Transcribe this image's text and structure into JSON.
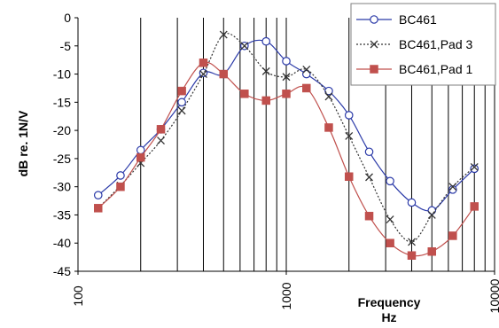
{
  "chart_data": {
    "type": "line",
    "title": "",
    "xlabel": [
      "Frequency",
      "Hz"
    ],
    "ylabel": "dB re. 1N/V",
    "x_scale": "log",
    "xlim": [
      100,
      10000
    ],
    "ylim": [
      -45,
      0
    ],
    "x_ticks": [
      100,
      1000,
      10000
    ],
    "x_tick_labels": [
      "100",
      "1000",
      "10000"
    ],
    "y_ticks": [
      0,
      -5,
      -10,
      -15,
      -20,
      -25,
      -30,
      -35,
      -40,
      -45
    ],
    "y_tick_labels": [
      "0",
      "-5",
      "-10",
      "-15",
      "-20",
      "-25",
      "-30",
      "-35",
      "-40",
      "-45"
    ],
    "x_grid": true,
    "x_grid_minor": true,
    "y_grid": false,
    "legend_position": "top-right",
    "x": [
      125,
      160,
      200,
      250,
      315,
      400,
      500,
      630,
      800,
      1000,
      1250,
      1600,
      2000,
      2500,
      3150,
      4000,
      5000,
      6300,
      8000
    ],
    "series": [
      {
        "name": "BC461",
        "color": "#2b3aa8",
        "marker": "circle",
        "line": "solid",
        "values": [
          -31.5,
          -28,
          -23.5,
          -19.8,
          -15,
          -9.8,
          -10,
          -5,
          -4.2,
          -7.7,
          -10,
          -13,
          -17.3,
          -23.8,
          -29,
          -32.8,
          -34.2,
          -30.5,
          -26.8
        ]
      },
      {
        "name": "BC461,Pad 3",
        "color": "#333333",
        "marker": "x",
        "line": "dotted",
        "values": [
          -33.8,
          -29.8,
          -25.8,
          -21.8,
          -16.5,
          -10,
          -3,
          -5,
          -9.5,
          -10.5,
          -9.2,
          -14,
          -21,
          -28.3,
          -35.8,
          -39.8,
          -35,
          -30,
          -26.5
        ]
      },
      {
        "name": "BC461,Pad 1",
        "color": "#c0504d",
        "marker": "square",
        "line": "solid",
        "values": [
          -33.8,
          -30,
          -24.8,
          -19.8,
          -13,
          -8,
          -10,
          -13.5,
          -14.7,
          -13.5,
          -12.5,
          -19.5,
          -28.2,
          -35.2,
          -40,
          -42.2,
          -41.5,
          -38.7,
          -33.5
        ]
      }
    ]
  }
}
